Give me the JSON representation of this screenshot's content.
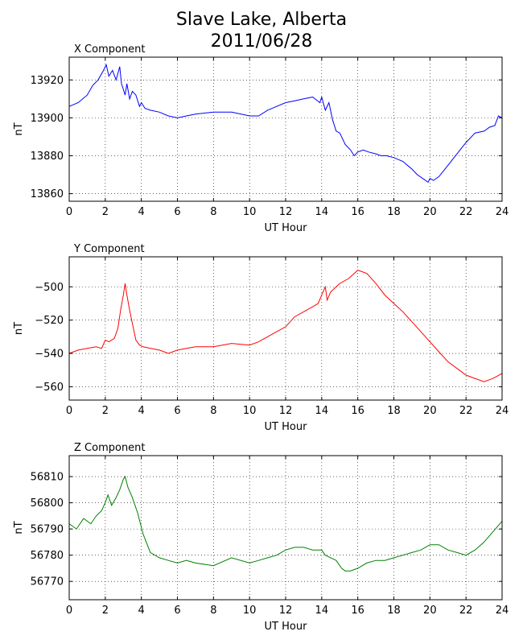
{
  "title_line1": "Slave Lake, Alberta",
  "title_line2": "2011/06/28",
  "chart_data": [
    {
      "type": "line",
      "title": "X Component",
      "xlabel": "UT Hour",
      "ylabel": "nT",
      "xlim": [
        0,
        24
      ],
      "ylim": [
        13856,
        13932
      ],
      "xticks": [
        0,
        2,
        4,
        6,
        8,
        10,
        12,
        14,
        16,
        18,
        20,
        22,
        24
      ],
      "yticks": [
        13860,
        13880,
        13900,
        13920
      ],
      "grid": true,
      "color": "#0000ff",
      "series": [
        {
          "x": [
            0,
            0.5,
            1,
            1.3,
            1.6,
            1.9,
            2.05,
            2.2,
            2.4,
            2.6,
            2.8,
            2.9,
            3.0,
            3.1,
            3.2,
            3.35,
            3.5,
            3.7,
            3.9,
            4.0,
            4.2,
            4.5,
            5,
            5.5,
            6,
            6.5,
            7,
            8,
            9,
            10,
            10.5,
            11,
            11.5,
            12,
            12.5,
            13,
            13.5,
            13.9,
            14.0,
            14.2,
            14.4,
            14.6,
            14.8,
            15,
            15.3,
            15.6,
            15.8,
            16,
            16.3,
            16.6,
            17,
            17.3,
            17.6,
            18,
            18.5,
            19,
            19.3,
            19.6,
            19.9,
            20,
            20.2,
            20.5,
            21,
            21.5,
            22,
            22.5,
            23,
            23.3,
            23.6,
            23.8,
            24
          ],
          "y": [
            13906,
            13908,
            13912,
            13917,
            13920,
            13925,
            13928,
            13922,
            13925,
            13920,
            13927,
            13918,
            13915,
            13912,
            13918,
            13910,
            13914,
            13912,
            13906,
            13908,
            13905,
            13904,
            13903,
            13901,
            13900,
            13901,
            13902,
            13903,
            13903,
            13901,
            13901,
            13904,
            13906,
            13908,
            13909,
            13910,
            13911,
            13908,
            13911,
            13904,
            13908,
            13899,
            13893,
            13892,
            13886,
            13883,
            13880,
            13882,
            13883,
            13882,
            13881,
            13880,
            13880,
            13879,
            13877,
            13873,
            13870,
            13868,
            13866,
            13868,
            13867,
            13869,
            13875,
            13881,
            13887,
            13892,
            13893,
            13895,
            13896,
            13901,
            13900
          ]
        }
      ]
    },
    {
      "type": "line",
      "title": "Y Component",
      "xlabel": "UT Hour",
      "ylabel": "nT",
      "xlim": [
        0,
        24
      ],
      "ylim": [
        -568,
        -482
      ],
      "xticks": [
        0,
        2,
        4,
        6,
        8,
        10,
        12,
        14,
        16,
        18,
        20,
        22,
        24
      ],
      "yticks": [
        -500,
        -520,
        -540,
        -560
      ],
      "grid": true,
      "color": "#ff0000",
      "series": [
        {
          "x": [
            0,
            0.5,
            1,
            1.5,
            1.8,
            2.0,
            2.2,
            2.5,
            2.7,
            2.85,
            3.0,
            3.1,
            3.2,
            3.35,
            3.5,
            3.7,
            3.9,
            4.1,
            4.5,
            5,
            5.5,
            6,
            7,
            8,
            9,
            10,
            10.5,
            11,
            11.5,
            12,
            12.5,
            13,
            13.5,
            13.8,
            14.0,
            14.2,
            14.3,
            14.5,
            14.8,
            15,
            15.5,
            16,
            16.5,
            17,
            17.5,
            18,
            18.5,
            19,
            19.5,
            20,
            20.5,
            21,
            21.5,
            22,
            22.5,
            23,
            23.5,
            24
          ],
          "y": [
            -540,
            -538,
            -537,
            -536,
            -537,
            -532,
            -533,
            -531,
            -525,
            -514,
            -505,
            -498,
            -505,
            -514,
            -522,
            -532,
            -535,
            -536,
            -537,
            -538,
            -540,
            -538,
            -536,
            -536,
            -534,
            -535,
            -533,
            -530,
            -527,
            -524,
            -518,
            -515,
            -512,
            -510,
            -505,
            -500,
            -508,
            -503,
            -500,
            -498,
            -495,
            -490,
            -492,
            -498,
            -505,
            -510,
            -515,
            -521,
            -527,
            -533,
            -539,
            -545,
            -549,
            -553,
            -555,
            -557,
            -555,
            -552
          ]
        }
      ]
    },
    {
      "type": "line",
      "title": "Z Component",
      "xlabel": "UT Hour",
      "ylabel": "nT",
      "xlim": [
        0,
        24
      ],
      "ylim": [
        56763,
        56818
      ],
      "xticks": [
        0,
        2,
        4,
        6,
        8,
        10,
        12,
        14,
        16,
        18,
        20,
        22,
        24
      ],
      "yticks": [
        56770,
        56780,
        56790,
        56800,
        56810
      ],
      "grid": true,
      "color": "#008000",
      "series": [
        {
          "x": [
            0,
            0.4,
            0.8,
            1.2,
            1.5,
            1.8,
            2.0,
            2.15,
            2.35,
            2.6,
            2.8,
            3.0,
            3.1,
            3.25,
            3.5,
            3.8,
            4.1,
            4.5,
            5,
            5.5,
            6,
            6.5,
            7,
            8,
            9,
            10,
            10.5,
            11,
            11.5,
            12,
            12.5,
            13,
            13.5,
            14,
            14.2,
            14.5,
            14.8,
            15.1,
            15.3,
            15.6,
            16,
            16.5,
            17,
            17.5,
            18,
            18.5,
            19,
            19.5,
            20,
            20.5,
            21,
            21.5,
            22,
            22.5,
            23,
            23.5,
            24
          ],
          "y": [
            56792,
            56790,
            56794,
            56792,
            56795,
            56797,
            56800,
            56803,
            56799,
            56802,
            56805,
            56809,
            56810,
            56806,
            56802,
            56796,
            56788,
            56781,
            56779,
            56778,
            56777,
            56778,
            56777,
            56776,
            56779,
            56777,
            56778,
            56779,
            56780,
            56782,
            56783,
            56783,
            56782,
            56782,
            56780,
            56779,
            56778,
            56775,
            56774,
            56774,
            56775,
            56777,
            56778,
            56778,
            56779,
            56780,
            56781,
            56782,
            56784,
            56784,
            56782,
            56781,
            56780,
            56782,
            56785,
            56789,
            56793
          ]
        }
      ]
    }
  ]
}
